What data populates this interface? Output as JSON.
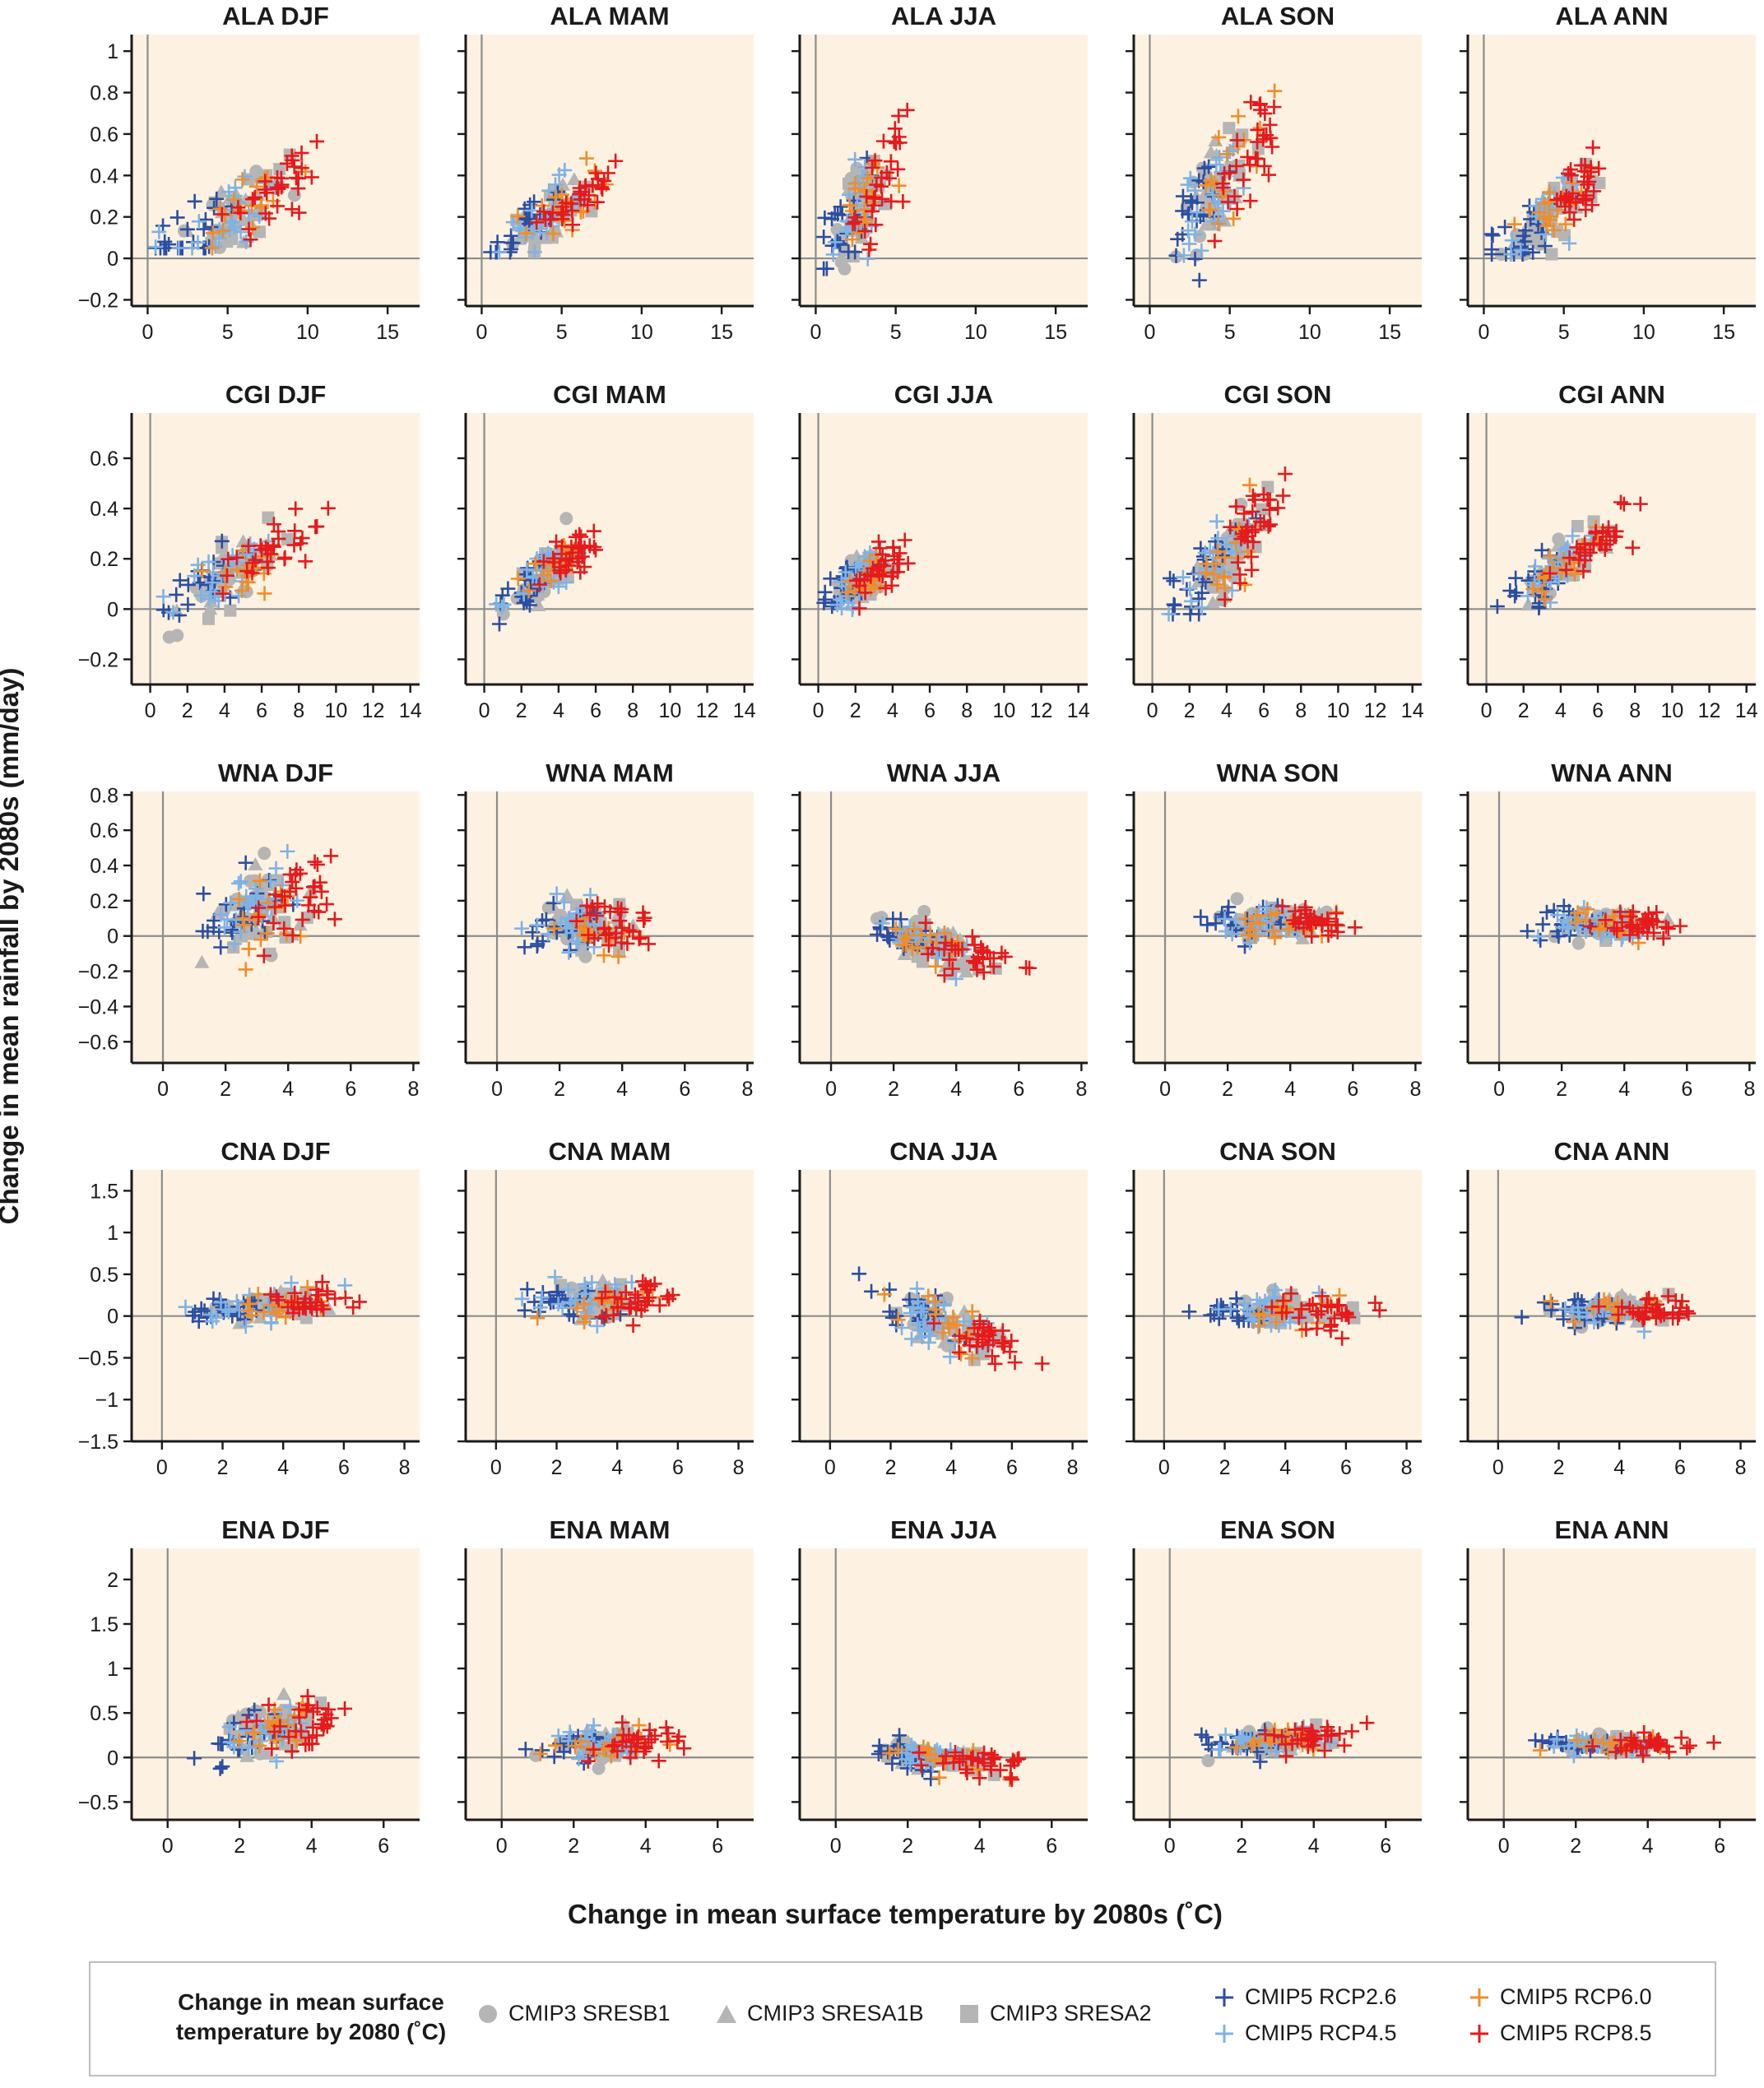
{
  "figure": {
    "y_axis_label": "Change in mean rainfall by 2080s (mm/day)",
    "x_axis_label": "Change in mean surface temperature by 2080s (˚C)"
  },
  "legend": {
    "title": "Change in mean surface temperature by 2080 (˚C)",
    "items": [
      {
        "label": "CMIP3 SRESB1",
        "marker": "circle",
        "color": "#b5b5b5"
      },
      {
        "label": "CMIP3 SRESA1B",
        "marker": "triangle",
        "color": "#b5b5b5"
      },
      {
        "label": "CMIP3 SRESA2",
        "marker": "square",
        "color": "#b5b5b5"
      },
      {
        "label": "CMIP5 RCP2.6",
        "marker": "plus",
        "color": "#2b4ea2"
      },
      {
        "label": "CMIP5 RCP4.5",
        "marker": "plus",
        "color": "#7fb2e5"
      },
      {
        "label": "CMIP5 RCP6.0",
        "marker": "plus",
        "color": "#f28c28"
      },
      {
        "label": "CMIP5 RCP8.5",
        "marker": "plus",
        "color": "#e41a1c"
      }
    ]
  },
  "colors": {
    "panel_background": "#fdf2e1",
    "zero_line": "#8c8c8c",
    "cmip3": "#b5b5b5",
    "rcp26": "#2b4ea2",
    "rcp45": "#7fb2e5",
    "rcp60": "#f28c28",
    "rcp85": "#e41a1c"
  },
  "chart_data": {
    "type": "scatter",
    "note_series": [
      "CMIP3 SRESB1",
      "CMIP3 SRESA1B",
      "CMIP3 SRESA2",
      "CMIP5 RCP2.6",
      "CMIP5 RCP4.5",
      "CMIP5 RCP6.0",
      "CMIP5 RCP8.5"
    ],
    "rows": [
      {
        "region": "ALA",
        "xlim": [
          -1,
          17
        ],
        "ylim": [
          -0.23,
          1.08
        ],
        "xticks": [
          0,
          5,
          10,
          15
        ],
        "yticks": [
          -0.2,
          0,
          0.2,
          0.4,
          0.6,
          0.8,
          1
        ],
        "ytick_labels": [
          "−0.2",
          "0",
          "0.2",
          "0.4",
          "0.6",
          "0.8",
          "1"
        ],
        "panels": [
          {
            "title": "ALA DJF",
            "t": [
              0.5,
              16
            ],
            "p": [
              0.05,
              0.65
            ],
            "cloud": [
              5.5,
              0.22
            ],
            "spread": [
              3.0,
              0.16
            ],
            "slope": 0.042
          },
          {
            "title": "ALA MAM",
            "t": [
              0.5,
              12
            ],
            "p": [
              0.03,
              0.58
            ],
            "cloud": [
              4.5,
              0.22
            ],
            "spread": [
              2.2,
              0.12
            ],
            "slope": 0.046
          },
          {
            "title": "ALA JJA",
            "t": [
              0.5,
              9
            ],
            "p": [
              -0.05,
              1.0
            ],
            "cloud": [
              2.8,
              0.25
            ],
            "spread": [
              1.4,
              0.17
            ],
            "slope": 0.09
          },
          {
            "title": "ALA SON",
            "t": [
              0.5,
              10
            ],
            "p": [
              -0.15,
              0.88
            ],
            "cloud": [
              4.5,
              0.35
            ],
            "spread": [
              1.8,
              0.2
            ],
            "slope": 0.09
          },
          {
            "title": "ALA ANN",
            "t": [
              0.5,
              11
            ],
            "p": [
              0.02,
              0.75
            ],
            "cloud": [
              4.2,
              0.22
            ],
            "spread": [
              2.0,
              0.12
            ],
            "slope": 0.06
          }
        ]
      },
      {
        "region": "CGI",
        "xlim": [
          -1,
          14.5
        ],
        "ylim": [
          -0.3,
          0.78
        ],
        "xticks": [
          0,
          2,
          4,
          6,
          8,
          10,
          12,
          14
        ],
        "yticks": [
          -0.2,
          0,
          0.2,
          0.4,
          0.6
        ],
        "ytick_labels": [
          "−0.2",
          "0",
          "0.2",
          "0.4",
          "0.6"
        ],
        "panels": [
          {
            "title": "CGI DJF",
            "t": [
              0.3,
              13
            ],
            "p": [
              -0.15,
              0.6
            ],
            "cloud": [
              4.5,
              0.15
            ],
            "spread": [
              2.4,
              0.1
            ],
            "slope": 0.042
          },
          {
            "title": "CGI MAM",
            "t": [
              0.3,
              8.5
            ],
            "p": [
              -0.15,
              0.42
            ],
            "cloud": [
              3.5,
              0.15
            ],
            "spread": [
              1.5,
              0.08
            ],
            "slope": 0.05
          },
          {
            "title": "CGI JJA",
            "t": [
              0.3,
              7.5
            ],
            "p": [
              -0.03,
              0.4
            ],
            "cloud": [
              2.5,
              0.13
            ],
            "spread": [
              1.3,
              0.08
            ],
            "slope": 0.045
          },
          {
            "title": "CGI SON",
            "t": [
              0.3,
              9
            ],
            "p": [
              -0.02,
              0.72
            ],
            "cloud": [
              4.0,
              0.22
            ],
            "spread": [
              1.6,
              0.12
            ],
            "slope": 0.07
          },
          {
            "title": "CGI ANN",
            "t": [
              0.3,
              9
            ],
            "p": [
              -0.05,
              0.46
            ],
            "cloud": [
              4.2,
              0.18
            ],
            "spread": [
              1.8,
              0.08
            ],
            "slope": 0.055
          }
        ]
      },
      {
        "region": "WNA",
        "xlim": [
          -1,
          8.2
        ],
        "ylim": [
          -0.72,
          0.82
        ],
        "xticks": [
          0,
          2,
          4,
          6,
          8
        ],
        "yticks": [
          -0.6,
          -0.4,
          -0.2,
          0,
          0.2,
          0.4,
          0.6,
          0.8
        ],
        "ytick_labels": [
          "−0.6",
          "−0.4",
          "−0.2",
          "0",
          "0.2",
          "0.4",
          "0.6",
          "0.8"
        ],
        "panels": [
          {
            "title": "WNA DJF",
            "t": [
              0.5,
              7.5
            ],
            "p": [
              -0.68,
              0.72
            ],
            "cloud": [
              3.2,
              0.15
            ],
            "spread": [
              1.2,
              0.2
            ],
            "slope": 0.04
          },
          {
            "title": "WNA MAM",
            "t": [
              -0.6,
              6.8
            ],
            "p": [
              -0.46,
              0.64
            ],
            "cloud": [
              2.8,
              0.06
            ],
            "spread": [
              1.1,
              0.12
            ],
            "slope": 0.0
          },
          {
            "title": "WNA JJA",
            "t": [
              0.2,
              7.5
            ],
            "p": [
              -0.42,
              0.27
            ],
            "cloud": [
              3.3,
              -0.05
            ],
            "spread": [
              1.3,
              0.1
            ],
            "slope": -0.05
          },
          {
            "title": "WNA SON",
            "t": [
              0.2,
              7
            ],
            "p": [
              -0.3,
              0.33
            ],
            "cloud": [
              3.5,
              0.08
            ],
            "spread": [
              1.3,
              0.08
            ],
            "slope": 0.0
          },
          {
            "title": "WNA ANN",
            "t": [
              0.5,
              7
            ],
            "p": [
              -0.3,
              0.3
            ],
            "cloud": [
              3.4,
              0.07
            ],
            "spread": [
              1.3,
              0.07
            ],
            "slope": 0.0
          }
        ]
      },
      {
        "region": "CNA",
        "xlim": [
          -1,
          8.5
        ],
        "ylim": [
          -1.5,
          1.75
        ],
        "xticks": [
          0,
          2,
          4,
          6,
          8
        ],
        "yticks": [
          -1.5,
          -1,
          -0.5,
          0,
          0.5,
          1,
          1.5
        ],
        "ytick_labels": [
          "−1.5",
          "−1",
          "−0.5",
          "0",
          "0.5",
          "1",
          "1.5"
        ],
        "panels": [
          {
            "title": "CNA DJF",
            "t": [
              0.4,
              8
            ],
            "p": [
              -1.4,
              0.9
            ],
            "cloud": [
              3.5,
              0.12
            ],
            "spread": [
              1.4,
              0.15
            ],
            "slope": 0.02
          },
          {
            "title": "CNA MAM",
            "t": [
              -1,
              7.5
            ],
            "p": [
              -0.7,
              1.55
            ],
            "cloud": [
              3.3,
              0.18
            ],
            "spread": [
              1.3,
              0.2
            ],
            "slope": 0.0
          },
          {
            "title": "CNA JJA",
            "t": [
              0.3,
              8
            ],
            "p": [
              -1.2,
              0.65
            ],
            "cloud": [
              3.8,
              -0.1
            ],
            "spread": [
              1.5,
              0.25
            ],
            "slope": -0.12
          },
          {
            "title": "CNA SON",
            "t": [
              0.3,
              8
            ],
            "p": [
              -1.0,
              0.85
            ],
            "cloud": [
              3.8,
              0.05
            ],
            "spread": [
              1.5,
              0.17
            ],
            "slope": 0.0
          },
          {
            "title": "CNA ANN",
            "t": [
              0.3,
              7.8
            ],
            "p": [
              -0.8,
              0.6
            ],
            "cloud": [
              3.8,
              0.06
            ],
            "spread": [
              1.4,
              0.12
            ],
            "slope": 0.0
          }
        ]
      },
      {
        "region": "ENA",
        "xlim": [
          -1,
          7
        ],
        "ylim": [
          -0.7,
          2.35
        ],
        "xticks": [
          0,
          2,
          4,
          6
        ],
        "yticks": [
          -0.5,
          0,
          0.5,
          1,
          1.5,
          2
        ],
        "ytick_labels": [
          "−0.5",
          "0",
          "0.5",
          "1",
          "1.5",
          "2"
        ],
        "panels": [
          {
            "title": "ENA DJF",
            "t": [
              0.2,
              6
            ],
            "p": [
              -0.55,
              2.15
            ],
            "cloud": [
              3.0,
              0.3
            ],
            "spread": [
              1.1,
              0.22
            ],
            "slope": 0.08
          },
          {
            "title": "ENA MAM",
            "t": [
              0.0,
              6.5
            ],
            "p": [
              -0.72,
              0.68
            ],
            "cloud": [
              2.9,
              0.15
            ],
            "spread": [
              1.1,
              0.13
            ],
            "slope": 0.02
          },
          {
            "title": "ENA JJA",
            "t": [
              0.0,
              6.5
            ],
            "p": [
              -0.5,
              0.45
            ],
            "cloud": [
              2.9,
              0.0
            ],
            "spread": [
              1.2,
              0.12
            ],
            "slope": -0.05
          },
          {
            "title": "ENA SON",
            "t": [
              0.0,
              6.3
            ],
            "p": [
              -0.45,
              0.75
            ],
            "cloud": [
              3.0,
              0.2
            ],
            "spread": [
              1.2,
              0.12
            ],
            "slope": 0.03
          },
          {
            "title": "ENA ANN",
            "t": [
              0.0,
              6
            ],
            "p": [
              -0.12,
              0.7
            ],
            "cloud": [
              3.0,
              0.15
            ],
            "spread": [
              1.1,
              0.08
            ],
            "slope": 0.0
          }
        ]
      }
    ]
  }
}
